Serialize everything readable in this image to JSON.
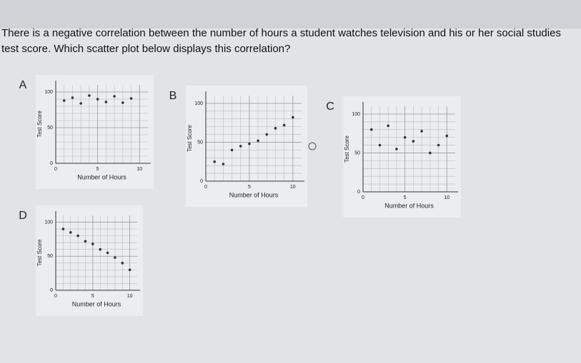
{
  "question": "There is a negative correlation between the number of hours a student watches television and his or her social studies test score. Which scatter plot below displays this correlation?",
  "chart_data": [
    {
      "type": "scatter",
      "label": "A",
      "xlabel": "Number of Hours",
      "ylabel": "Test Score",
      "x": [
        1,
        2,
        3,
        4,
        5,
        6,
        7,
        8,
        9
      ],
      "values": [
        88,
        92,
        84,
        95,
        90,
        86,
        94,
        85,
        91
      ],
      "xlim": [
        0,
        11
      ],
      "ylim": [
        0,
        110
      ],
      "xticks": [
        0,
        5,
        10
      ],
      "yticks": [
        0,
        50,
        100
      ],
      "grid": true,
      "color": "#333333"
    },
    {
      "type": "scatter",
      "label": "B",
      "xlabel": "Number of Hours",
      "ylabel": "Test Score",
      "x": [
        1,
        2,
        3,
        4,
        5,
        6,
        7,
        8,
        9,
        10
      ],
      "values": [
        25,
        22,
        40,
        45,
        48,
        52,
        60,
        68,
        72,
        82
      ],
      "xlim": [
        0,
        11
      ],
      "ylim": [
        0,
        110
      ],
      "xticks": [
        0,
        5,
        10
      ],
      "yticks": [
        0,
        50,
        100
      ],
      "grid": true,
      "color": "#333333"
    },
    {
      "type": "scatter",
      "label": "C",
      "xlabel": "Number of Hours",
      "ylabel": "Test Score",
      "x": [
        1,
        2,
        3,
        4,
        5,
        6,
        7,
        8,
        9,
        10
      ],
      "values": [
        80,
        60,
        85,
        55,
        70,
        65,
        78,
        50,
        60,
        72
      ],
      "xlim": [
        0,
        11
      ],
      "ylim": [
        0,
        110
      ],
      "xticks": [
        0,
        5,
        10
      ],
      "yticks": [
        0,
        50,
        100
      ],
      "grid": true,
      "color": "#333333"
    },
    {
      "type": "scatter",
      "label": "D",
      "xlabel": "Number of Hours",
      "ylabel": "Test Score",
      "x": [
        1,
        2,
        3,
        4,
        5,
        6,
        7,
        8,
        9,
        10
      ],
      "values": [
        90,
        85,
        80,
        72,
        68,
        60,
        55,
        48,
        40,
        30
      ],
      "xlim": [
        0,
        11
      ],
      "ylim": [
        0,
        110
      ],
      "xticks": [
        0,
        5,
        10
      ],
      "yticks": [
        0,
        50,
        100
      ],
      "grid": true,
      "color": "#333333"
    }
  ]
}
